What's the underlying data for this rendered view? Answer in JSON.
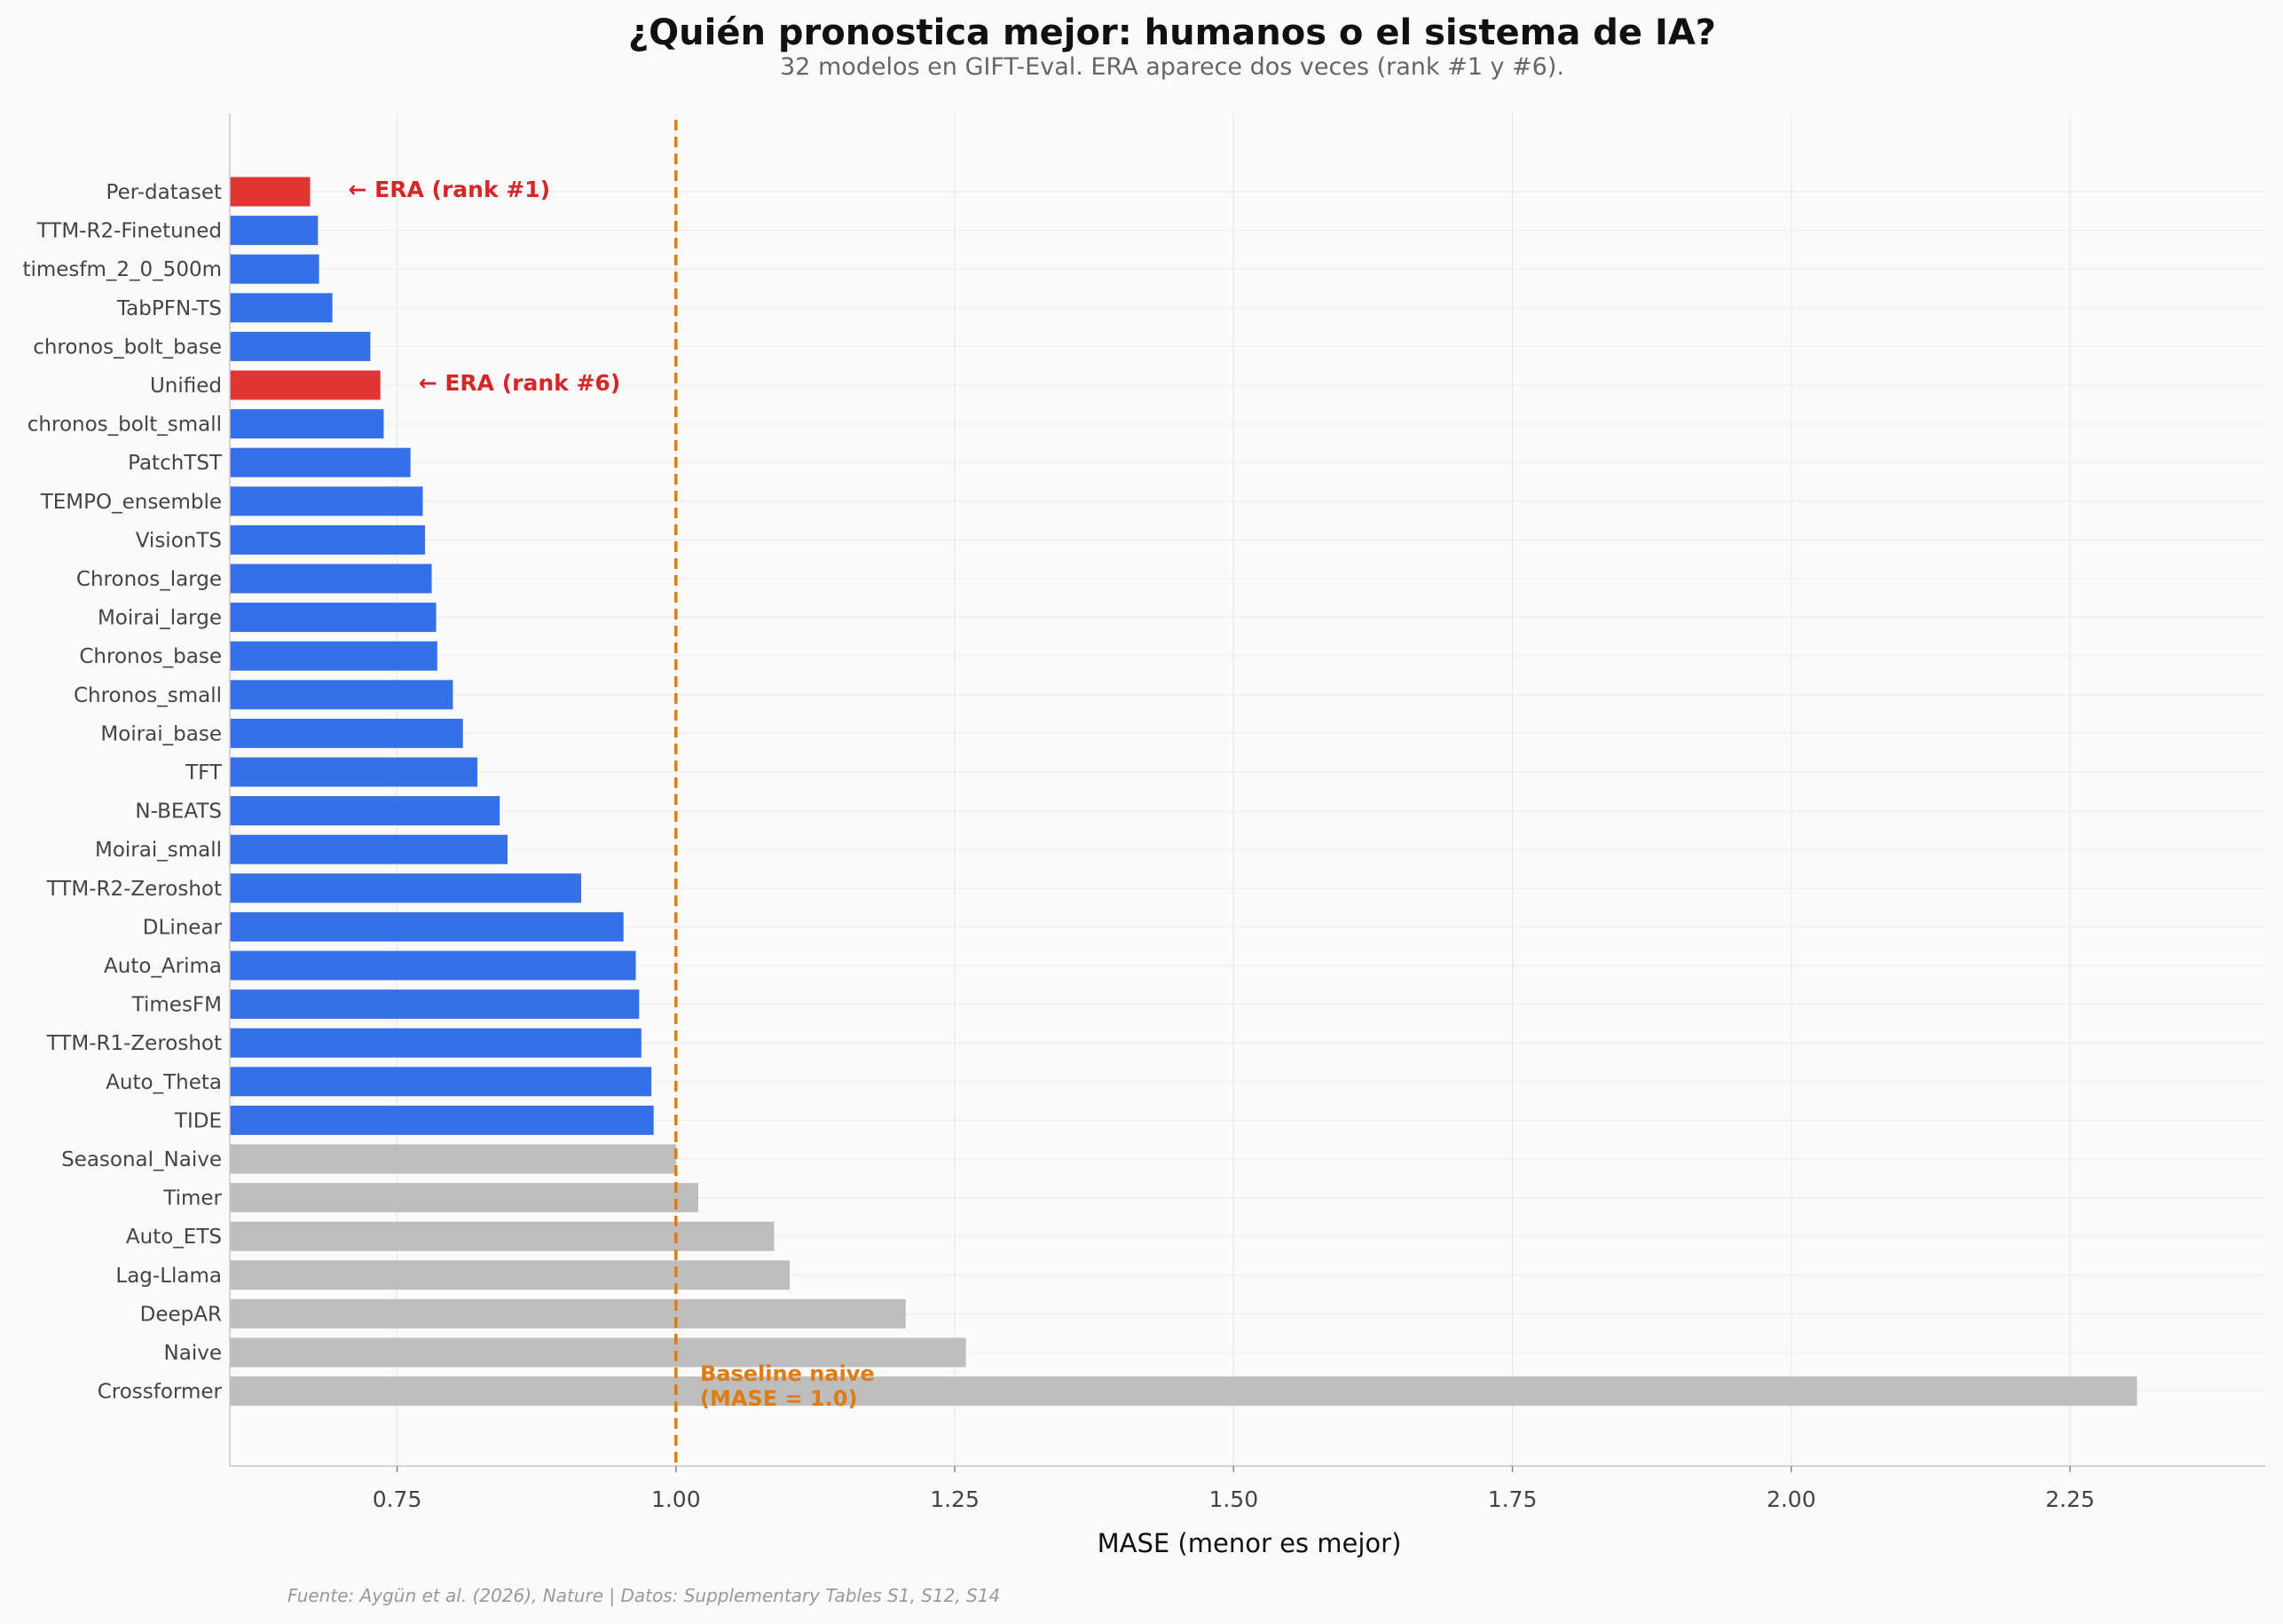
{
  "chart_data": {
    "type": "bar",
    "orientation": "horizontal",
    "title": "¿Quién pronostica mejor: humanos o el sistema de IA?",
    "subtitle": "32 modelos en GIFT-Eval. ERA aparece dos veces (rank #1 y #6).",
    "xlabel": "MASE (menor es mejor)",
    "xlim": [
      0.6,
      2.425
    ],
    "xticks": [
      "0.75",
      "1.00",
      "1.25",
      "1.50",
      "1.75",
      "2.00",
      "2.25"
    ],
    "xtick_values": [
      0.75,
      1.0,
      1.25,
      1.5,
      1.75,
      2.0,
      2.25
    ],
    "grid": true,
    "colors": {
      "era": "#e03535",
      "better": "#3570e8",
      "worse": "#bdbdbd",
      "baseline": "#e07b10",
      "era_text": "#d62728"
    },
    "bars": [
      {
        "label": "Per-dataset",
        "value": 0.672,
        "group": "era"
      },
      {
        "label": "TTM-R2-Finetuned",
        "value": 0.679,
        "group": "better"
      },
      {
        "label": "timesfm_2_0_500m",
        "value": 0.68,
        "group": "better"
      },
      {
        "label": "TabPFN-TS",
        "value": 0.692,
        "group": "better"
      },
      {
        "label": "chronos_bolt_base",
        "value": 0.726,
        "group": "better"
      },
      {
        "label": "Unified",
        "value": 0.735,
        "group": "era"
      },
      {
        "label": "chronos_bolt_small",
        "value": 0.738,
        "group": "better"
      },
      {
        "label": "PatchTST",
        "value": 0.762,
        "group": "better"
      },
      {
        "label": "TEMPO_ensemble",
        "value": 0.773,
        "group": "better"
      },
      {
        "label": "VisionTS",
        "value": 0.775,
        "group": "better"
      },
      {
        "label": "Chronos_large",
        "value": 0.781,
        "group": "better"
      },
      {
        "label": "Moirai_large",
        "value": 0.785,
        "group": "better"
      },
      {
        "label": "Chronos_base",
        "value": 0.786,
        "group": "better"
      },
      {
        "label": "Chronos_small",
        "value": 0.8,
        "group": "better"
      },
      {
        "label": "Moirai_base",
        "value": 0.809,
        "group": "better"
      },
      {
        "label": "TFT",
        "value": 0.822,
        "group": "better"
      },
      {
        "label": "N-BEATS",
        "value": 0.842,
        "group": "better"
      },
      {
        "label": "Moirai_small",
        "value": 0.849,
        "group": "better"
      },
      {
        "label": "TTM-R2-Zeroshot",
        "value": 0.915,
        "group": "better"
      },
      {
        "label": "DLinear",
        "value": 0.953,
        "group": "better"
      },
      {
        "label": "Auto_Arima",
        "value": 0.964,
        "group": "better"
      },
      {
        "label": "TimesFM",
        "value": 0.967,
        "group": "better"
      },
      {
        "label": "TTM-R1-Zeroshot",
        "value": 0.969,
        "group": "better"
      },
      {
        "label": "Auto_Theta",
        "value": 0.978,
        "group": "better"
      },
      {
        "label": "TIDE",
        "value": 0.98,
        "group": "better"
      },
      {
        "label": "Seasonal_Naive",
        "value": 1.0,
        "group": "worse"
      },
      {
        "label": "Timer",
        "value": 1.02,
        "group": "worse"
      },
      {
        "label": "Auto_ETS",
        "value": 1.088,
        "group": "worse"
      },
      {
        "label": "Lag-Llama",
        "value": 1.102,
        "group": "worse"
      },
      {
        "label": "DeepAR",
        "value": 1.206,
        "group": "worse"
      },
      {
        "label": "Naive",
        "value": 1.26,
        "group": "worse"
      },
      {
        "label": "Crossformer",
        "value": 2.31,
        "group": "worse"
      }
    ],
    "baseline": {
      "value": 1.0,
      "label_line1": "Baseline naive",
      "label_line2": "(MASE = 1.0)"
    },
    "annotations": [
      {
        "text": "← ERA (rank #1)",
        "bar_index": 0
      },
      {
        "text": "← ERA (rank #6)",
        "bar_index": 5
      }
    ],
    "source": "Fuente: Aygün et al. (2026), Nature | Datos: Supplementary Tables S1, S12, S14"
  }
}
